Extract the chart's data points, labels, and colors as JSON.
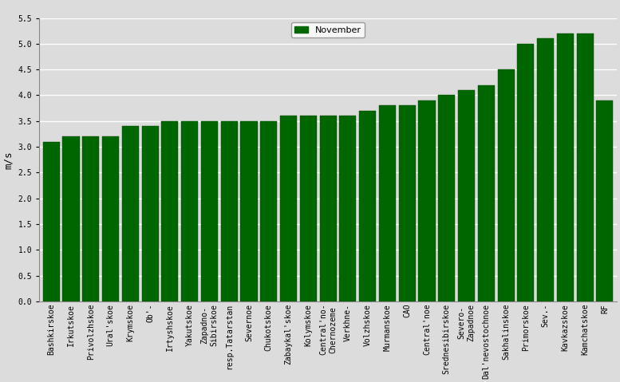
{
  "categories": [
    "Bashkirskoe",
    "Irkutskoe",
    "Privolzhskoe",
    "Ural'skoe",
    "Krymskoe",
    "Ob'-",
    "Irtyshskoe",
    "Yakutskoe",
    "Zapadno-\nSibirskoe",
    "resp.Tatarstan",
    "Severnoe",
    "Chukotskoe",
    "Zabaykal'skoe",
    "Kolymskoe",
    "Central'no-\nChernozeme",
    "Verkhne-",
    "Volzhskoe",
    "Murmanskoe",
    "CAO",
    "Central'noe",
    "Srednesibirskoe",
    "Severo-\nZapadnoe",
    "Dal'nevostochnoe",
    "Sakhalinskoe",
    "Primorskoe",
    "Sev.-",
    "Kavkazskoe",
    "Kamchatskoe",
    "RF"
  ],
  "values": [
    3.1,
    3.2,
    3.2,
    3.2,
    3.4,
    3.4,
    3.5,
    3.5,
    3.5,
    3.5,
    3.5,
    3.5,
    3.6,
    3.6,
    3.6,
    3.6,
    3.7,
    3.8,
    3.8,
    3.9,
    4.0,
    4.1,
    4.2,
    4.5,
    5.0,
    5.1,
    5.2,
    5.2,
    3.9
  ],
  "bar_color": "#006600",
  "bar_edge_color": "#004400",
  "ylabel": "m/s",
  "ylim": [
    0,
    5.5
  ],
  "yticks": [
    0,
    0.5,
    1.0,
    1.5,
    2.0,
    2.5,
    3.0,
    3.5,
    4.0,
    4.5,
    5.0,
    5.5
  ],
  "legend_label": "November",
  "background_color": "#dcdcdc",
  "tick_fontsize": 7,
  "ylabel_fontsize": 9,
  "bar_width": 0.85
}
